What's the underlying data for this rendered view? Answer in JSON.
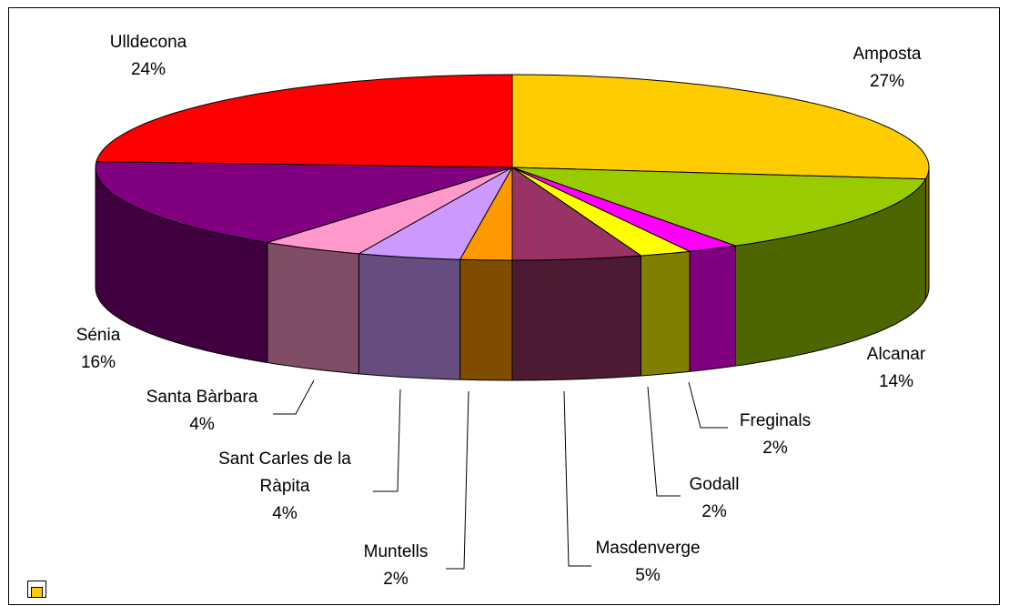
{
  "chart_data": {
    "type": "pie",
    "categories": [
      "Amposta",
      "Alcanar",
      "Freginals",
      "Godall",
      "Masdenverge",
      "Muntells",
      "Sant Carles de la Ràpita",
      "Santa Bàrbara",
      "Sénia",
      "Ulldecona"
    ],
    "values": [
      27,
      14,
      2,
      2,
      5,
      2,
      4,
      4,
      16,
      24
    ],
    "value_labels": [
      "27%",
      "14%",
      "2%",
      "2%",
      "5%",
      "2%",
      "4%",
      "4%",
      "16%",
      "24%"
    ],
    "colors": [
      "#ffcc00",
      "#99cc00",
      "#ff00ff",
      "#ffff00",
      "#993366",
      "#ff9900",
      "#cc99ff",
      "#ff99cc",
      "#800080",
      "#ff0000"
    ]
  }
}
